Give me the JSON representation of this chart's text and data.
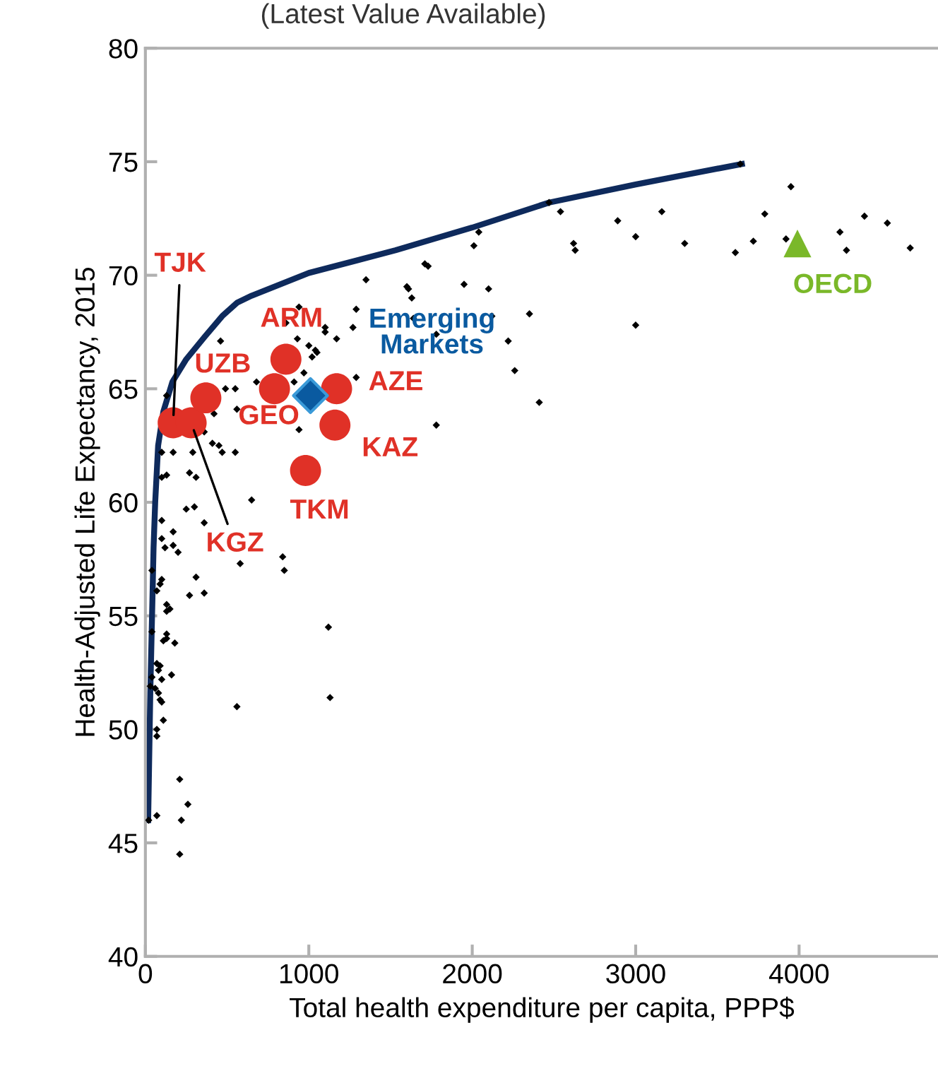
{
  "chart_data": {
    "type": "scatter",
    "subtitle": "(Latest Value Available)",
    "xlabel": "Total health expenditure per capita, PPP$",
    "ylabel": "Health-Adjusted Life Expectancy, 2015",
    "xlim": [
      0,
      4850
    ],
    "xticks": [
      0,
      1000,
      2000,
      3000,
      4000
    ],
    "ylim": [
      40,
      80
    ],
    "yticks": [
      40,
      45,
      50,
      55,
      60,
      65,
      70,
      75,
      80
    ],
    "grid": false,
    "legend": false,
    "series": [
      {
        "color": "#000000",
        "marker": "diamond",
        "x": [
          3640,
          3950,
          3790,
          4400,
          4540,
          4250,
          3920,
          3720,
          3610,
          4290,
          4680,
          3160,
          2890,
          3000,
          3300,
          2540,
          2470,
          2040,
          2010,
          2620,
          2630,
          1710,
          1730,
          1610,
          1630,
          1950,
          2100,
          2350,
          2120,
          1640,
          1780,
          2220,
          2260,
          2410,
          3000,
          1780,
          1350,
          1600,
          1290,
          1170,
          1100,
          1270,
          940,
          860,
          930,
          1000,
          1040,
          1020,
          1050,
          1100,
          970,
          910,
          1290,
          680,
          460,
          490,
          550,
          560,
          420,
          940,
          360,
          450,
          470,
          550,
          410,
          290,
          170,
          100,
          130,
          100,
          270,
          310,
          130,
          650,
          300,
          250,
          360,
          100,
          170,
          100,
          120,
          170,
          200,
          840,
          580,
          850,
          40,
          100,
          90,
          310,
          70,
          270,
          360,
          130,
          150,
          130,
          1120,
          40,
          130,
          130,
          110,
          180,
          70,
          90,
          80,
          160,
          40,
          100,
          30,
          60,
          80,
          90,
          100,
          560,
          1130,
          110,
          70,
          70,
          210,
          260,
          220,
          70,
          20,
          210
        ],
        "values": [
          74.9,
          73.9,
          72.7,
          72.6,
          72.3,
          71.9,
          71.6,
          71.5,
          71.0,
          71.1,
          71.2,
          72.8,
          72.4,
          71.7,
          71.4,
          72.8,
          73.2,
          71.9,
          71.3,
          71.4,
          71.1,
          70.5,
          70.4,
          69.4,
          69.0,
          69.6,
          69.4,
          68.3,
          68.2,
          68.1,
          67.4,
          67.1,
          65.8,
          64.4,
          67.8,
          63.4,
          69.8,
          69.5,
          68.5,
          67.2,
          67.7,
          67.7,
          68.6,
          67.9,
          67.2,
          66.9,
          66.7,
          66.4,
          66.6,
          67.5,
          65.7,
          65.3,
          65.5,
          65.3,
          67.1,
          65.0,
          65.0,
          64.1,
          63.9,
          63.2,
          63.1,
          62.5,
          62.2,
          62.2,
          62.6,
          62.2,
          62.2,
          62.2,
          61.2,
          61.1,
          61.3,
          61.1,
          64.7,
          60.1,
          59.8,
          59.7,
          59.1,
          59.2,
          58.7,
          58.4,
          58.0,
          58.1,
          57.8,
          57.6,
          57.3,
          57.0,
          57.0,
          56.6,
          56.4,
          56.7,
          56.1,
          55.9,
          56.0,
          55.5,
          55.3,
          55.2,
          54.5,
          54.3,
          54.2,
          54.0,
          53.9,
          53.8,
          52.9,
          52.8,
          52.6,
          52.4,
          52.3,
          52.2,
          51.9,
          51.8,
          51.6,
          51.3,
          51.2,
          51.0,
          51.4,
          50.4,
          50.0,
          49.7,
          47.8,
          46.7,
          46.0,
          46.2,
          46.0,
          44.5
        ]
      },
      {
        "type": "line",
        "color": "#0e2a5c",
        "marker": "none",
        "line_style": "solid",
        "x": [
          17,
          30,
          43,
          50,
          60,
          78,
          110,
          165,
          250,
          364,
          470,
          563,
          650,
          1000,
          1530,
          2000,
          2470,
          3000,
          3650
        ],
        "values": [
          46.0,
          51.6,
          55.7,
          58.0,
          60.0,
          62.5,
          64.0,
          65.3,
          66.3,
          67.3,
          68.2,
          68.8,
          69.1,
          70.1,
          71.1,
          72.1,
          73.2,
          74.0,
          74.9
        ]
      },
      {
        "name": "TJK",
        "color": "#e03127",
        "marker": "circle",
        "x": [
          170
        ],
        "values": [
          63.5
        ]
      },
      {
        "name": "KGZ",
        "color": "#e03127",
        "marker": "circle",
        "x": [
          280
        ],
        "values": [
          63.5
        ]
      },
      {
        "name": "UZB",
        "color": "#e03127",
        "marker": "circle",
        "x": [
          370
        ],
        "values": [
          64.6
        ]
      },
      {
        "name": "ARM",
        "color": "#e03127",
        "marker": "circle",
        "x": [
          860
        ],
        "values": [
          66.3
        ]
      },
      {
        "name": "GEO",
        "color": "#e03127",
        "marker": "circle",
        "x": [
          790
        ],
        "values": [
          65.0
        ]
      },
      {
        "name": "AZE",
        "color": "#e03127",
        "marker": "circle",
        "x": [
          1170
        ],
        "values": [
          65.0
        ]
      },
      {
        "name": "KAZ",
        "color": "#e03127",
        "marker": "circle",
        "x": [
          1160
        ],
        "values": [
          63.4
        ]
      },
      {
        "name": "TKM",
        "color": "#e03127",
        "marker": "circle",
        "x": [
          980
        ],
        "values": [
          61.4
        ]
      },
      {
        "name": "Emerging\nMarkets",
        "color": "#0a5aa0",
        "marker": "diamond",
        "x": [
          1010
        ],
        "values": [
          64.7
        ]
      },
      {
        "name": "OECD",
        "color": "#7ab829",
        "marker": "triangle",
        "x": [
          3990
        ],
        "values": [
          71.4
        ]
      }
    ]
  }
}
